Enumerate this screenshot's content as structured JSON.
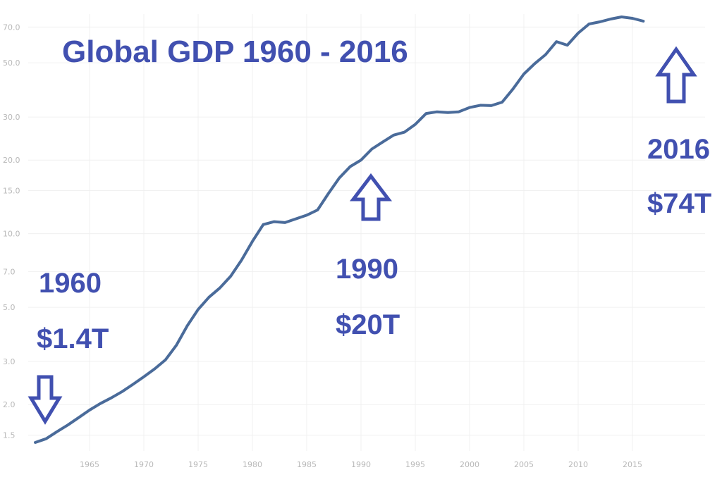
{
  "chart_data": {
    "type": "line",
    "title": "Global GDP 1960 - 2016",
    "xlabel": "",
    "ylabel": "",
    "y_scale": "log",
    "xlim": [
      1960,
      2017
    ],
    "ylim": [
      1.3,
      75
    ],
    "grid": true,
    "y_ticks": [
      {
        "value": 1.5,
        "label": "1.5"
      },
      {
        "value": 2,
        "label": "2.0"
      },
      {
        "value": 3,
        "label": "3.0"
      },
      {
        "value": 5,
        "label": "5.0"
      },
      {
        "value": 7,
        "label": "7.0"
      },
      {
        "value": 10,
        "label": "10.0"
      },
      {
        "value": 15,
        "label": "15.0"
      },
      {
        "value": 20,
        "label": "20.0"
      },
      {
        "value": 30,
        "label": "30.0"
      },
      {
        "value": 50,
        "label": "50.0"
      },
      {
        "value": 70,
        "label": "70.0"
      }
    ],
    "x_ticks": [
      {
        "value": 1965,
        "label": "1965"
      },
      {
        "value": 1970,
        "label": "1970"
      },
      {
        "value": 1975,
        "label": "1975"
      },
      {
        "value": 1980,
        "label": "1980"
      },
      {
        "value": 1985,
        "label": "1985"
      },
      {
        "value": 1990,
        "label": "1990"
      },
      {
        "value": 1995,
        "label": "1995"
      },
      {
        "value": 2000,
        "label": "2000"
      },
      {
        "value": 2005,
        "label": "2005"
      },
      {
        "value": 2010,
        "label": "2010"
      },
      {
        "value": 2015,
        "label": "2015"
      }
    ],
    "series": [
      {
        "name": "",
        "x": [
          1960,
          1961,
          1962,
          1963,
          1964,
          1965,
          1966,
          1967,
          1968,
          1969,
          1970,
          1971,
          1972,
          1973,
          1974,
          1975,
          1976,
          1977,
          1978,
          1979,
          1980,
          1981,
          1982,
          1983,
          1984,
          1985,
          1986,
          1987,
          1988,
          1989,
          1990,
          1991,
          1992,
          1993,
          1994,
          1995,
          1996,
          1997,
          1998,
          1999,
          2000,
          2001,
          2002,
          2003,
          2004,
          2005,
          2006,
          2007,
          2008,
          2009,
          2010,
          2011,
          2012,
          2013,
          2014,
          2015,
          2016
        ],
        "values": [
          1.4,
          1.45,
          1.55,
          1.65,
          1.77,
          1.9,
          2.02,
          2.13,
          2.26,
          2.42,
          2.6,
          2.8,
          3.05,
          3.5,
          4.2,
          4.9,
          5.5,
          6.0,
          6.7,
          7.8,
          9.3,
          10.9,
          11.2,
          11.1,
          11.5,
          11.9,
          12.5,
          14.6,
          16.9,
          18.8,
          20.0,
          22.2,
          23.7,
          25.3,
          26.0,
          28.0,
          31.0,
          31.5,
          31.3,
          31.5,
          32.8,
          33.5,
          33.4,
          34.5,
          39.1,
          45.0,
          49.6,
          54.0,
          61.0,
          59.0,
          66.1,
          72.0,
          73.5,
          75.5,
          77.0,
          76.0,
          74.0
        ]
      }
    ],
    "annotations": [
      {
        "year": "1960",
        "value": "$1.4T",
        "arrow": "down"
      },
      {
        "year": "1990",
        "value": "$20T",
        "arrow": "up"
      },
      {
        "year": "2016",
        "value": "$74T",
        "arrow": "up"
      }
    ]
  }
}
